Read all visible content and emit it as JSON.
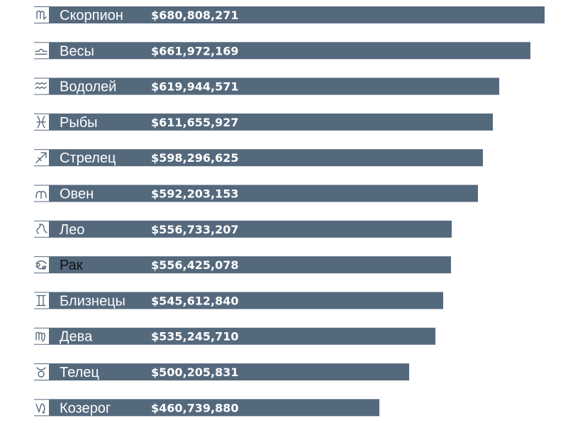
{
  "chart_data": {
    "type": "bar",
    "orientation": "horizontal",
    "bar_color": "#55697d",
    "value_color": "#ffffff",
    "categories": [
      "Скорпион",
      "Весы",
      "Водолей",
      "Рыбы",
      "Стрелец",
      "Овен",
      "Лео",
      "Рак",
      "Близнецы",
      "Дева",
      "Телец",
      "Козерог"
    ],
    "values": [
      680808271,
      661972169,
      619944571,
      611655927,
      598296625,
      592203153,
      556733207,
      556425078,
      545612840,
      535245710,
      500205831,
      460739880
    ],
    "value_labels": [
      "$680,808,271",
      "$661,972,169",
      "$619,944,571",
      "$611,655,927",
      "$598,296,625",
      "$592,203,153",
      "$556,733,207",
      "$556,425,078",
      "$545,612,840",
      "$535,245,710",
      "$500,205,831",
      "$460,739,880"
    ],
    "icons": [
      "scorpio-icon",
      "libra-icon",
      "aquarius-icon",
      "pisces-icon",
      "sagittarius-icon",
      "aries-icon",
      "leo-icon",
      "cancer-icon",
      "gemini-icon",
      "virgo-icon",
      "taurus-icon",
      "capricorn-icon"
    ],
    "xlim": [
      0,
      680808271
    ],
    "title": "",
    "xlabel": "",
    "ylabel": ""
  }
}
